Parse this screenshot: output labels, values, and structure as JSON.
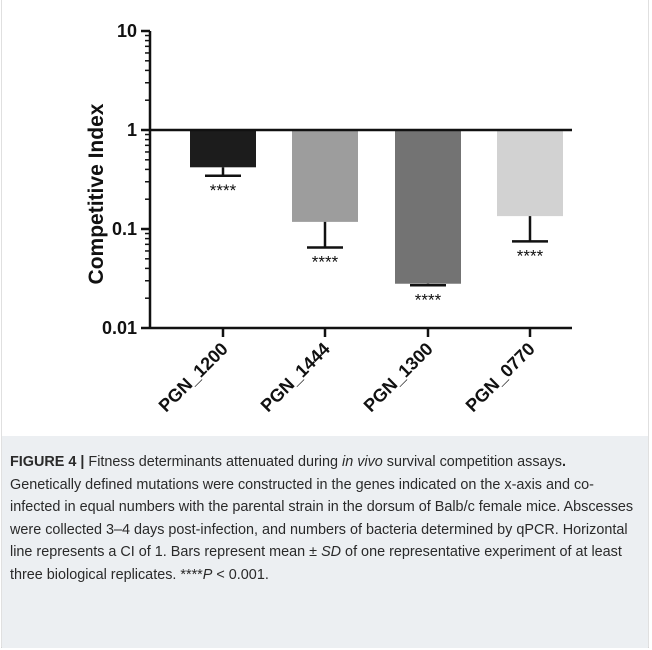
{
  "chart_data": {
    "type": "bar",
    "ylabel": "Competitive Index",
    "yscale": "log",
    "ylim": [
      0.01,
      10
    ],
    "yticks": [
      "0.01",
      "0.1",
      "1",
      "10"
    ],
    "reference_line": 1,
    "categories": [
      "PGN_1200",
      "PGN_1444",
      "PGN_1300",
      "PGN_0770"
    ],
    "values": [
      0.42,
      0.118,
      0.028,
      0.135
    ],
    "error_low": [
      0.345,
      0.065,
      0.027,
      0.075
    ],
    "annotations": [
      "****",
      "****",
      "****",
      "****"
    ],
    "colors": [
      "#1c1c1c",
      "#9d9d9d",
      "#737373",
      "#d2d2d2"
    ]
  },
  "caption": {
    "label": "FIGURE 4 |",
    "text_1": " Fitness determinants attenuated during ",
    "italic_1": "in vivo",
    "text_2": " survival competition assays",
    "bold_dot": ".",
    "text_3": " Genetically defined mutations were constructed in the genes indicated on the x-axis and co-infected in equal numbers with the parental strain in the dorsum of Balb/c female mice. Abscesses were collected 3–4 days post-infection, and numbers of bacteria determined by qPCR. Horizontal line represents a CI of 1. Bars represent mean ± ",
    "italic_2": "SD",
    "text_4": " of one representative experiment of at least three biological replicates. ****",
    "italic_3": "P",
    "text_5": " < 0.001."
  }
}
